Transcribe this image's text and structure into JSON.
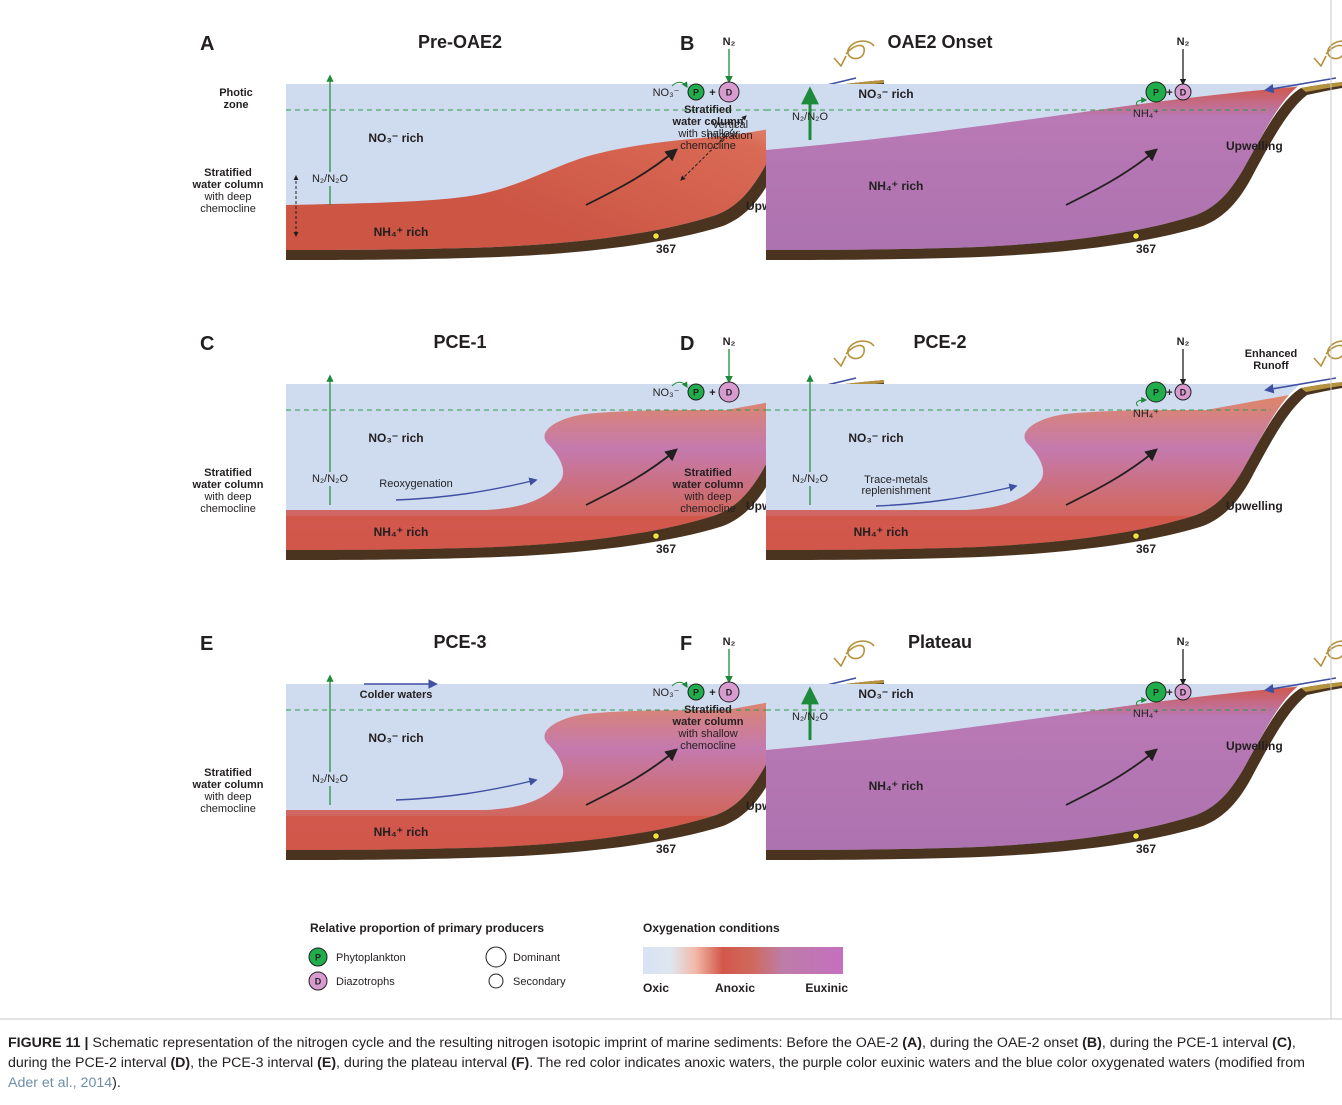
{
  "panels": [
    {
      "letter": "A",
      "title": "Pre-OAE2",
      "site": "367",
      "nitrate": "NO₃⁻ rich",
      "ammonium": "NH₄⁺ rich",
      "upwelling": "Upwelling",
      "n2": "N₂",
      "n2n2o": "N₂/N₂O",
      "no3_small": "NO₃⁻",
      "p": "P",
      "d": "D",
      "plus": "+",
      "photic": [
        "Photic",
        "zone"
      ],
      "strat": [
        "Stratified",
        "water column",
        "with deep",
        "chemocline"
      ],
      "vertical": [
        "Vertical",
        "migration"
      ]
    },
    {
      "letter": "B",
      "title": "OAE2 Onset",
      "site": "367",
      "nitrate": "NO₃⁻ rich",
      "ammonium": "NH₄⁺ rich",
      "upwelling": "Upwelling",
      "n2": "N₂",
      "n2n2o": "N₂/N₂O",
      "nh4_small": "NH₄⁺",
      "p": "P",
      "d": "D",
      "plus": "+",
      "strat": [
        "Stratified",
        "water column",
        "with shallow",
        "chemocline"
      ]
    },
    {
      "letter": "C",
      "title": "PCE-1",
      "site": "367",
      "nitrate": "NO₃⁻ rich",
      "ammonium": "NH₄⁺ rich",
      "upwelling": "Upwelling",
      "n2": "N₂",
      "n2n2o": "N₂/N₂O",
      "no3_small": "NO₃⁻",
      "p": "P",
      "d": "D",
      "plus": "+",
      "strat": [
        "Stratified",
        "water column",
        "with deep",
        "chemocline"
      ],
      "reox": "Reoxygenation"
    },
    {
      "letter": "D",
      "title": "PCE-2",
      "site": "367",
      "nitrate": "NO₃⁻ rich",
      "ammonium": "NH₄⁺ rich",
      "upwelling": "Upwelling",
      "n2": "N₂",
      "n2n2o": "N₂/N₂O",
      "nh4_small": "NH₄⁺",
      "p": "P",
      "d": "D",
      "plus": "+",
      "strat": [
        "Stratified",
        "water column",
        "with deep",
        "chemocline"
      ],
      "trace": [
        "Trace-metals",
        "replenishment"
      ],
      "runoff": [
        "Enhanced",
        "Runoff"
      ]
    },
    {
      "letter": "E",
      "title": "PCE-3",
      "site": "367",
      "nitrate": "NO₃⁻ rich",
      "ammonium": "NH₄⁺ rich",
      "upwelling": "Upwelling",
      "n2": "N₂",
      "n2n2o": "N₂/N₂O",
      "no3_small": "NO₃⁻",
      "p": "P",
      "d": "D",
      "plus": "+",
      "strat": [
        "Stratified",
        "water column",
        "with deep",
        "chemocline"
      ],
      "colder": "Colder waters"
    },
    {
      "letter": "F",
      "title": "Plateau",
      "site": "367",
      "nitrate": "NO₃⁻ rich",
      "ammonium": "NH₄⁺ rich",
      "upwelling": "Upwelling",
      "n2": "N₂",
      "n2n2o": "N₂/N₂O",
      "nh4_small": "NH₄⁺",
      "p": "P",
      "d": "D",
      "plus": "+",
      "strat": [
        "Stratified",
        "water column",
        "with shallow",
        "chemocline"
      ]
    }
  ],
  "legend": {
    "producers_title": "Relative proportion of primary producers",
    "phytoplankton": "Phytoplankton",
    "diazotrophs": "Diazotrophs",
    "dominant": "Dominant",
    "secondary": "Secondary",
    "p": "P",
    "d": "D",
    "oxy_title": "Oxygenation conditions",
    "oxic": "Oxic",
    "anoxic": "Anoxic",
    "euxinic": "Euxinic"
  },
  "colors": {
    "oxic": "#cfdcef",
    "anoxic": "#d2574a",
    "euxinic": "#b377b8",
    "sediment": "#4a3420",
    "phytoplankton": "#1fae4b",
    "diazotroph": "#d89bd0",
    "arrow_green": "#1c8a3a",
    "arrow_blue": "#3f4fa3"
  },
  "caption": {
    "label": "FIGURE 11 |",
    "s1": " Schematic representation of the nitrogen cycle and the resulting nitrogen isotopic imprint of marine sediments: Before the OAE-2 ",
    "a": "(A)",
    "s2": ", during the OAE-2 onset ",
    "b": "(B)",
    "s3": ", during the PCE-1 interval ",
    "c": "(C)",
    "s4": ", during the PCE-2 interval ",
    "d": "(D)",
    "s5": ", the PCE-3 interval ",
    "e": "(E)",
    "s6": ", during the plateau interval ",
    "f": "(F)",
    "s7": ". The red color indicates anoxic waters, the purple color euxinic waters and the blue color oxygenated waters (modified from ",
    "ref": "Ader et al., 2014",
    "s8": ")."
  }
}
